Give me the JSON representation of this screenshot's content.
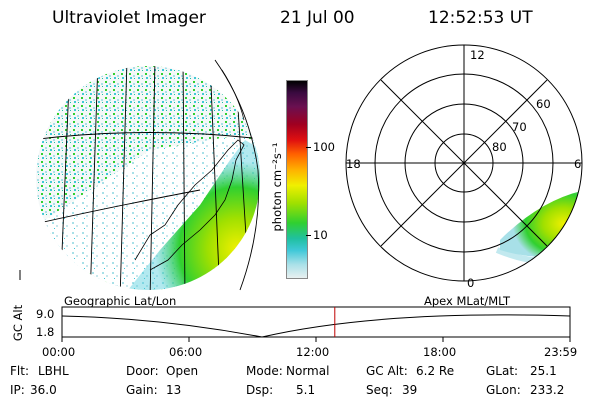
{
  "header": {
    "instrument": "Ultraviolet Imager",
    "date": "21 Jul 00",
    "time": "12:52:53 UT"
  },
  "colorbar": {
    "label": "photon cm⁻²s⁻¹",
    "ticks": [
      "100",
      "10"
    ],
    "colors": [
      "#000000",
      "#3a0a40",
      "#6a1050",
      "#a00020",
      "#e01010",
      "#ff6000",
      "#ffb000",
      "#f0f000",
      "#a0e000",
      "#30d030",
      "#20c0a0",
      "#40c8d8",
      "#a8e0e8",
      "#e8f0f0"
    ]
  },
  "polar": {
    "labels": {
      "top": "12",
      "left": "18",
      "right": "6",
      "bottom": "0"
    },
    "rings": [
      "60",
      "70",
      "80"
    ]
  },
  "panel_labels": {
    "left": "Geographic Lat/Lon",
    "right": "Apex MLat/MLT"
  },
  "timeline": {
    "axis_label": "GC Alt",
    "y_ticks": [
      "9.0",
      "1.8"
    ],
    "x_ticks": [
      "00:00",
      "06:00",
      "12:00",
      "18:00",
      "23:59"
    ],
    "current_fraction": 0.537
  },
  "info": {
    "row1": [
      {
        "label": "Flt:",
        "value": "LBHL"
      },
      {
        "label": "Door:",
        "value": "Open"
      },
      {
        "label": "Mode:",
        "value": "Normal"
      },
      {
        "label": "GC Alt:",
        "value": "6.2 Re"
      },
      {
        "label": "GLat:",
        "value": "25.1"
      }
    ],
    "row2": [
      {
        "label": "IP:",
        "value": "36.0"
      },
      {
        "label": "Gain:",
        "value": "13"
      },
      {
        "label": "Dsp:",
        "value": "5.1"
      },
      {
        "label": "Seq:",
        "value": "39"
      },
      {
        "label": "GLon:",
        "value": "233.2"
      }
    ]
  }
}
